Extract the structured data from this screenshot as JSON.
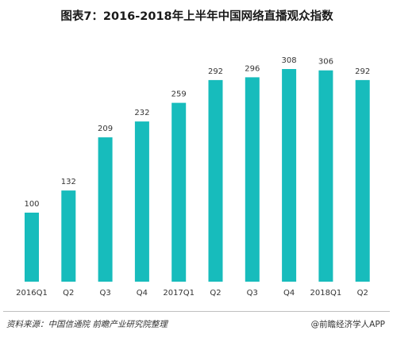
{
  "title": "图表7：2016-2018年上半年中国网络直播观众指数",
  "chart_data": {
    "type": "bar",
    "categories": [
      "2016Q1",
      "Q2",
      "Q3",
      "Q4",
      "2017Q1",
      "Q2",
      "Q3",
      "Q4",
      "2018Q1",
      "Q2"
    ],
    "values": [
      100,
      132,
      209,
      232,
      259,
      292,
      296,
      308,
      306,
      292
    ],
    "ylim": [
      0,
      308
    ],
    "grid": false,
    "legend": "none",
    "bar_color": "#17bcbc"
  },
  "footer": {
    "source": "资料来源：中国信通院   前瞻产业研究院整理",
    "credit": "@前瞻经济学人APP"
  }
}
